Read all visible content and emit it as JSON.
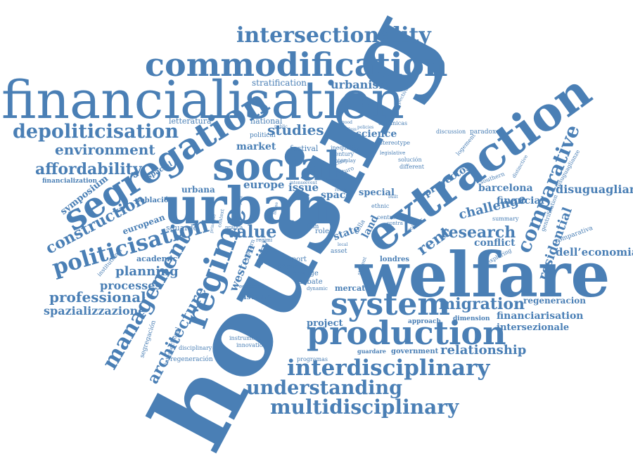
{
  "color": "#4a7fb5",
  "words": {
    "housing": "housing",
    "welfare": "welfare",
    "financialisation": "financialisation",
    "extraction": "extraction",
    "urban": "urban",
    "social": "social",
    "segregation": "segregation",
    "commodification": "commodification",
    "production": "production",
    "system": "system",
    "regime": "regime",
    "interdisciplinary": "interdisciplinary",
    "multidisciplinary": "multidisciplinary",
    "understanding": "understanding",
    "intersectionality": "intersectionality",
    "depoliticisation": "depoliticisation",
    "politicisation": "politicisation",
    "comparative": "comparative",
    "management": "management",
    "architecture": "architecture",
    "construction": "construction",
    "environment": "environment",
    "affordability": "affordability",
    "professional": "professional",
    "spazializzazione": "spazializzazione",
    "processes": "processes",
    "planning": "planning",
    "migration": "migration",
    "research": "research",
    "relationship": "relationship",
    "financiarisation": "financiarisation",
    "regeneracion": "regeneracion",
    "intersezionale": "intersezionale",
    "disuguaglianza": "disuguaglianza",
    "dell_economia": "dell’economia",
    "residential": "residential",
    "challenge": "challenge",
    "conflict": "conflict",
    "financial": "financial",
    "barcelona": "barcelona",
    "proyectos": "proyectos",
    "rent": "rent",
    "value": "value",
    "studies": "studies",
    "urbanism": "urbanism",
    "stratification": "stratification",
    "national": "national",
    "letteratura": "letteratura",
    "market": "market",
    "europe": "europe",
    "issue": "issue",
    "science": "science",
    "space": "space",
    "special": "special",
    "state": "state",
    "land": "land",
    "city": "city",
    "western": "western",
    "symposium": "symposium",
    "european": "european",
    "academic": "academic",
    "sistema": "sistema",
    "debate": "debate",
    "londres": "londres",
    "mercato": "mercato",
    "project": "project",
    "government": "government",
    "guardare": "guardare",
    "dimension": "dimension",
    "approach": "approach",
    "programas": "programas",
    "instrument": "instrument",
    "innovation": "innovation",
    "disciplinary": "disciplinary",
    "regeneracion_2": "regeneración",
    "segregacion": "segregación",
    "intersectional": "intersectional",
    "institutional": "institutional",
    "sguardo": "sguardo",
    "poblacion": "población",
    "financialization": "financialization",
    "espacial": "espacial",
    "urbana": "urbana",
    "festival": "festival",
    "political": "political",
    "inequality": "inequality",
    "century": "century",
    "interplay": "interplay",
    "stereotype": "stereotype",
    "legislative": "legislative",
    "solucion": "solución",
    "different": "different",
    "dinamicas": "dinámicas",
    "discussion": "discussion",
    "paradoxes": "paradoxes",
    "logement": "logement",
    "perspective": "perspective",
    "southern": "southern",
    "distinctive": "distinctive",
    "disuguaglianze": "disuguaglianze",
    "summary": "summary",
    "gentrification": "gentrification",
    "comparativa": "comparativa",
    "exploring": "exploring",
    "report": "report",
    "paper": "paper",
    "change": "change",
    "film": "film",
    "role": "role",
    "asset": "asset",
    "della": "della",
    "centro": "centro",
    "ethnic": "ethnic",
    "futuro": "futuro",
    "sociale": "sociale",
    "education": "education",
    "dynamic": "dynamic",
    "context": "context",
    "pattern": "pattern",
    "regimi": "regimi",
    "pratica": "pratica",
    "student": "student",
    "local": "local",
    "scholar": "scholar",
    "contra": "contra",
    "policies": "policies",
    "good": "good",
    "class": "class",
    "rental": "rental",
    "intense": "intense",
    "public": "public",
    "event": "event",
    "built": "built",
    "principle": "principle",
    "complex": "complex",
    "house": "house"
  }
}
